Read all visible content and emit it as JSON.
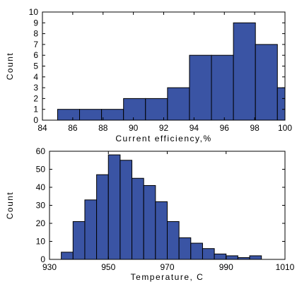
{
  "chart_data": [
    {
      "type": "bar",
      "xlabel": "Current efficiency,%",
      "ylabel": "Count",
      "xlim": [
        84,
        100
      ],
      "ylim": [
        0,
        10
      ],
      "xticks": [
        84,
        86,
        88,
        90,
        92,
        94,
        96,
        98,
        100
      ],
      "yticks": [
        0,
        1,
        2,
        3,
        4,
        5,
        6,
        7,
        8,
        9,
        10
      ],
      "bars": [
        {
          "x0": 85,
          "x1": 86.45,
          "value": 1
        },
        {
          "x0": 86.45,
          "x1": 87.9,
          "value": 1
        },
        {
          "x0": 87.9,
          "x1": 89.35,
          "value": 1
        },
        {
          "x0": 89.35,
          "x1": 90.8,
          "value": 2
        },
        {
          "x0": 90.8,
          "x1": 92.25,
          "value": 2
        },
        {
          "x0": 92.25,
          "x1": 93.7,
          "value": 3
        },
        {
          "x0": 93.7,
          "x1": 95.15,
          "value": 6
        },
        {
          "x0": 95.15,
          "x1": 96.6,
          "value": 6
        },
        {
          "x0": 96.6,
          "x1": 98.05,
          "value": 9
        },
        {
          "x0": 98.05,
          "x1": 99.5,
          "value": 7
        },
        {
          "x0": 99.5,
          "x1": 100.95,
          "value": 3
        }
      ],
      "bar_color": "#3a54a4"
    },
    {
      "type": "bar",
      "xlabel": "Temperature, C",
      "ylabel": "Count",
      "xlim": [
        930,
        1010
      ],
      "ylim": [
        0,
        60
      ],
      "xticks": [
        930,
        950,
        970,
        990,
        1010
      ],
      "yticks": [
        0,
        10,
        20,
        30,
        40,
        50,
        60
      ],
      "bars": [
        {
          "x0": 934,
          "x1": 938,
          "value": 4
        },
        {
          "x0": 938,
          "x1": 942,
          "value": 21
        },
        {
          "x0": 942,
          "x1": 946,
          "value": 33
        },
        {
          "x0": 946,
          "x1": 950,
          "value": 47
        },
        {
          "x0": 950,
          "x1": 954,
          "value": 58
        },
        {
          "x0": 954,
          "x1": 958,
          "value": 55
        },
        {
          "x0": 958,
          "x1": 962,
          "value": 45
        },
        {
          "x0": 962,
          "x1": 966,
          "value": 41
        },
        {
          "x0": 966,
          "x1": 970,
          "value": 32
        },
        {
          "x0": 970,
          "x1": 974,
          "value": 21
        },
        {
          "x0": 974,
          "x1": 978,
          "value": 12
        },
        {
          "x0": 978,
          "x1": 982,
          "value": 9
        },
        {
          "x0": 982,
          "x1": 986,
          "value": 6
        },
        {
          "x0": 986,
          "x1": 990,
          "value": 3
        },
        {
          "x0": 990,
          "x1": 994,
          "value": 2
        },
        {
          "x0": 994,
          "x1": 998,
          "value": 1
        },
        {
          "x0": 998,
          "x1": 1002,
          "value": 2
        }
      ],
      "bar_color": "#3a54a4"
    }
  ]
}
